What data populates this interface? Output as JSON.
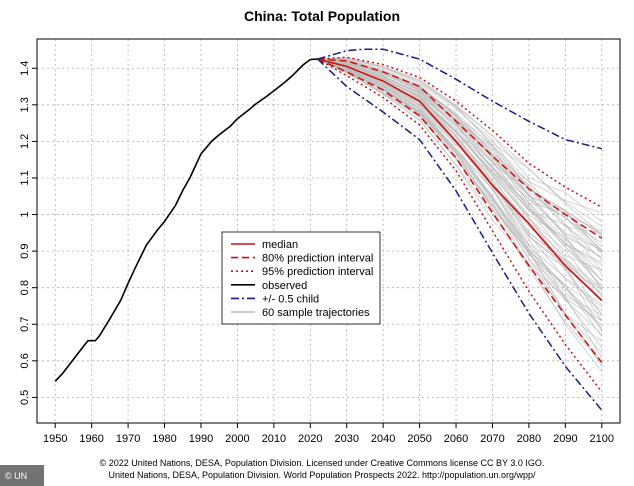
{
  "chart_data": {
    "type": "line",
    "title": "China: Total Population",
    "xlabel": "",
    "ylabel": "",
    "xlim": [
      1945,
      2105
    ],
    "ylim": [
      0.43,
      1.48
    ],
    "x_ticks": [
      1950,
      1960,
      1970,
      1980,
      1990,
      2000,
      2010,
      2020,
      2030,
      2040,
      2050,
      2060,
      2070,
      2080,
      2090,
      2100
    ],
    "y_ticks": [
      0.5,
      0.6,
      0.7,
      0.8,
      0.9,
      1,
      1.1,
      1.2,
      1.3,
      1.4
    ],
    "grid": true,
    "legend_position": "center-left",
    "series": [
      {
        "name": "observed",
        "color": "#000000",
        "dash": "solid",
        "x": [
          1950,
          1952,
          1955,
          1958,
          1959,
          1960,
          1961,
          1962,
          1965,
          1968,
          1970,
          1972,
          1975,
          1978,
          1980,
          1983,
          1985,
          1987,
          1990,
          1993,
          1995,
          1998,
          2000,
          2003,
          2005,
          2008,
          2010,
          2013,
          2015,
          2018,
          2020,
          2022
        ],
        "values": [
          0.544,
          0.565,
          0.604,
          0.643,
          0.655,
          0.655,
          0.655,
          0.666,
          0.715,
          0.766,
          0.812,
          0.855,
          0.916,
          0.957,
          0.981,
          1.025,
          1.066,
          1.101,
          1.166,
          1.201,
          1.218,
          1.241,
          1.262,
          1.285,
          1.302,
          1.323,
          1.338,
          1.362,
          1.379,
          1.409,
          1.424,
          1.425
        ]
      },
      {
        "name": "median",
        "color": "#cc1111",
        "dash": "solid",
        "x": [
          2022,
          2030,
          2040,
          2050,
          2060,
          2070,
          2080,
          2090,
          2100
        ],
        "values": [
          1.425,
          1.405,
          1.365,
          1.31,
          1.2,
          1.08,
          0.975,
          0.86,
          0.765
        ]
      },
      {
        "name": "80% prediction interval",
        "color": "#cc1111",
        "dash": "dashed",
        "x": [
          2022,
          2030,
          2040,
          2050,
          2060,
          2070,
          2080,
          2090,
          2100
        ],
        "values": [
          1.425,
          1.42,
          1.39,
          1.35,
          1.255,
          1.16,
          1.07,
          1.0,
          0.935
        ]
      },
      {
        "name": "",
        "color": "#cc1111",
        "dash": "dashed",
        "x": [
          2022,
          2030,
          2040,
          2050,
          2060,
          2070,
          2080,
          2090,
          2100
        ],
        "values": [
          1.425,
          1.39,
          1.34,
          1.27,
          1.155,
          1.005,
          0.86,
          0.725,
          0.595
        ]
      },
      {
        "name": "95% prediction interval",
        "color": "#cc1111",
        "dash": "dotted",
        "x": [
          2022,
          2030,
          2040,
          2050,
          2060,
          2070,
          2080,
          2090,
          2100
        ],
        "values": [
          1.425,
          1.43,
          1.41,
          1.375,
          1.31,
          1.23,
          1.14,
          1.075,
          1.02
        ]
      },
      {
        "name": "",
        "color": "#cc1111",
        "dash": "dotted",
        "x": [
          2022,
          2030,
          2040,
          2050,
          2060,
          2070,
          2080,
          2090,
          2100
        ],
        "values": [
          1.425,
          1.38,
          1.32,
          1.245,
          1.12,
          0.955,
          0.79,
          0.645,
          0.515
        ]
      },
      {
        "name": "+/- 0.5 child",
        "color": "#1a1a8c",
        "dash": "dashdot",
        "x": [
          2022,
          2030,
          2035,
          2040,
          2050,
          2060,
          2070,
          2080,
          2090,
          2100
        ],
        "values": [
          1.425,
          1.448,
          1.452,
          1.452,
          1.425,
          1.37,
          1.31,
          1.255,
          1.205,
          1.18
        ]
      },
      {
        "name": "",
        "color": "#1a1a8c",
        "dash": "dashdot",
        "x": [
          2022,
          2030,
          2040,
          2050,
          2060,
          2070,
          2080,
          2090,
          2100
        ],
        "values": [
          1.425,
          1.35,
          1.28,
          1.205,
          1.065,
          0.895,
          0.73,
          0.585,
          0.465
        ]
      }
    ],
    "sample_trajectories": {
      "name": "60 sample trajectories",
      "color": "#bbbbbb",
      "count": 60,
      "x": [
        2022,
        2030,
        2040,
        2050,
        2060,
        2070,
        2080,
        2090,
        2100
      ],
      "lower": [
        1.425,
        1.385,
        1.325,
        1.255,
        1.135,
        0.985,
        0.83,
        0.69,
        0.555
      ],
      "upper": [
        1.425,
        1.43,
        1.405,
        1.37,
        1.3,
        1.215,
        1.125,
        1.06,
        1.005
      ]
    },
    "legend": [
      {
        "label": "median",
        "color": "#cc1111",
        "dash": "solid"
      },
      {
        "label": "80% prediction interval",
        "color": "#cc1111",
        "dash": "dashed"
      },
      {
        "label": "95% prediction interval",
        "color": "#cc1111",
        "dash": "dotted"
      },
      {
        "label": "observed",
        "color": "#000000",
        "dash": "solid"
      },
      {
        "label": "+/- 0.5 child",
        "color": "#1a1a8c",
        "dash": "dashdot"
      },
      {
        "label": "60 sample trajectories",
        "color": "#bbbbbb",
        "dash": "solid"
      }
    ]
  },
  "footer": {
    "line1": "© 2022 United Nations, DESA, Population Division. Licensed under Creative Commons license CC BY 3.0 IGO.",
    "line2": "United Nations, DESA, Population Division. World Population Prospects 2022. http://population.un.org/wpp/"
  },
  "credit": "© UN"
}
